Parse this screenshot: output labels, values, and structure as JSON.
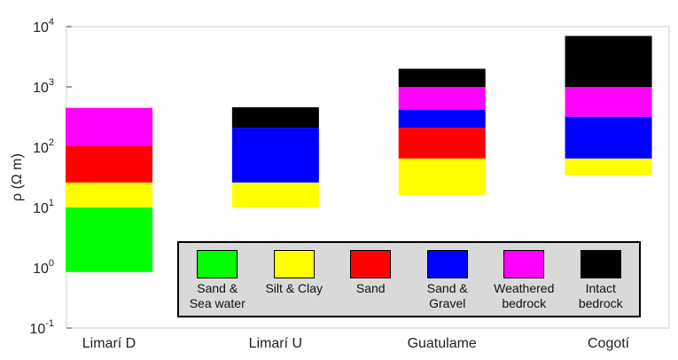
{
  "chart_data": {
    "type": "range-bar",
    "ylabel": "ρ (Ω m)",
    "ylog": true,
    "categories": [
      "Limarí D",
      "Limarí U",
      "Guatulame",
      "Cogotí"
    ],
    "series": [
      {
        "name": "Sand &\nSea water",
        "color": "#00ff00",
        "values": [
          [
            0.85,
            10
          ],
          null,
          null,
          null
        ]
      },
      {
        "name": "Silt & Clay",
        "color": "#ffff00",
        "values": [
          [
            10,
            26
          ],
          [
            10,
            26
          ],
          [
            16,
            65
          ],
          [
            34,
            65
          ]
        ]
      },
      {
        "name": "Sand",
        "color": "#ff0000",
        "values": [
          [
            26,
            105
          ],
          null,
          [
            65,
            210
          ],
          null
        ]
      },
      {
        "name": "Sand &\nGravel",
        "color": "#0000ff",
        "values": [
          null,
          [
            26,
            210
          ],
          [
            210,
            420
          ],
          [
            65,
            320
          ]
        ]
      },
      {
        "name": "Weathered\nbedrock",
        "color": "#ff00ff",
        "values": [
          [
            105,
            450
          ],
          null,
          [
            420,
            1000
          ],
          [
            320,
            1000
          ]
        ]
      },
      {
        "name": "Intact\nbedrock",
        "color": "#000000",
        "values": [
          null,
          [
            210,
            460
          ],
          [
            1000,
            2000
          ],
          [
            1000,
            7000
          ]
        ]
      }
    ],
    "ylim": [
      0.1,
      10000
    ],
    "yticks": [
      {
        "value": 0.1,
        "label": "10",
        "exponent": "-1"
      },
      {
        "value": 1,
        "label": "10",
        "exponent": "0"
      },
      {
        "value": 10,
        "label": "10",
        "exponent": "1"
      },
      {
        "value": 100,
        "label": "10",
        "exponent": "2"
      },
      {
        "value": 1000,
        "label": "10",
        "exponent": "3"
      },
      {
        "value": 10000,
        "label": "10",
        "exponent": "4"
      }
    ]
  }
}
